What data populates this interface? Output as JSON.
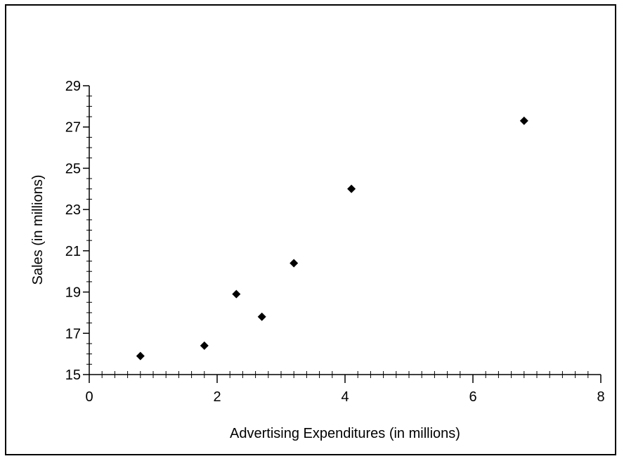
{
  "chart_data": {
    "type": "scatter",
    "title": "",
    "xlabel": "Advertising Expenditures (in millions)",
    "ylabel": "Sales (in millions)",
    "xlim": [
      0,
      8
    ],
    "ylim": [
      15,
      29
    ],
    "x_ticks": [
      0,
      2,
      4,
      6,
      8
    ],
    "y_ticks": [
      15,
      17,
      19,
      21,
      23,
      25,
      27,
      29
    ],
    "x_tick_labels": [
      "0",
      "2",
      "4",
      "6",
      "8"
    ],
    "y_tick_labels": [
      "15",
      "17",
      "19",
      "21",
      "23",
      "25",
      "27",
      "29"
    ],
    "grid": false,
    "marker": "diamond",
    "marker_color": "#000000",
    "series": [
      {
        "x": [
          0.8,
          1.8,
          2.3,
          2.7,
          3.2,
          4.1,
          6.8
        ],
        "y": [
          15.9,
          16.4,
          18.9,
          17.8,
          20.4,
          24.0,
          27.3
        ]
      }
    ]
  }
}
